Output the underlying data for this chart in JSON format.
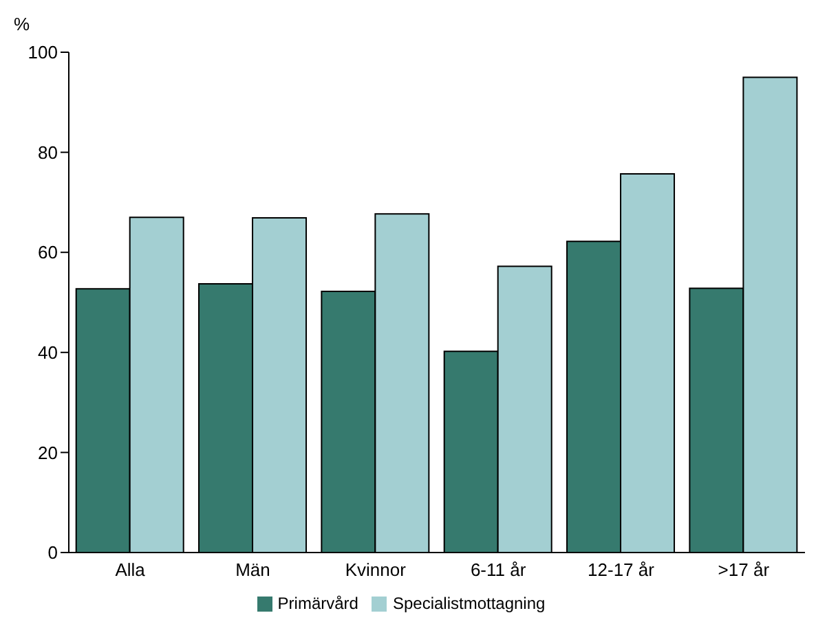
{
  "chart_data": {
    "type": "bar",
    "ylabel": "%",
    "categories": [
      "Alla",
      "Män",
      "Kvinnor",
      "6-11 år",
      "12-17 år",
      ">17 år"
    ],
    "series": [
      {
        "name": "Primärvård",
        "color": "#367a6e",
        "values": [
          52.7,
          53.7,
          52.2,
          40.2,
          62.2,
          52.8
        ]
      },
      {
        "name": "Specialistmottagning",
        "color": "#a3cfd2",
        "values": [
          67,
          66.9,
          67.7,
          57.2,
          75.7,
          95
        ]
      }
    ],
    "ylim": [
      0,
      100
    ],
    "yticks": [
      0,
      20,
      40,
      60,
      80,
      100
    ],
    "grid": false,
    "legend": "bottom"
  }
}
